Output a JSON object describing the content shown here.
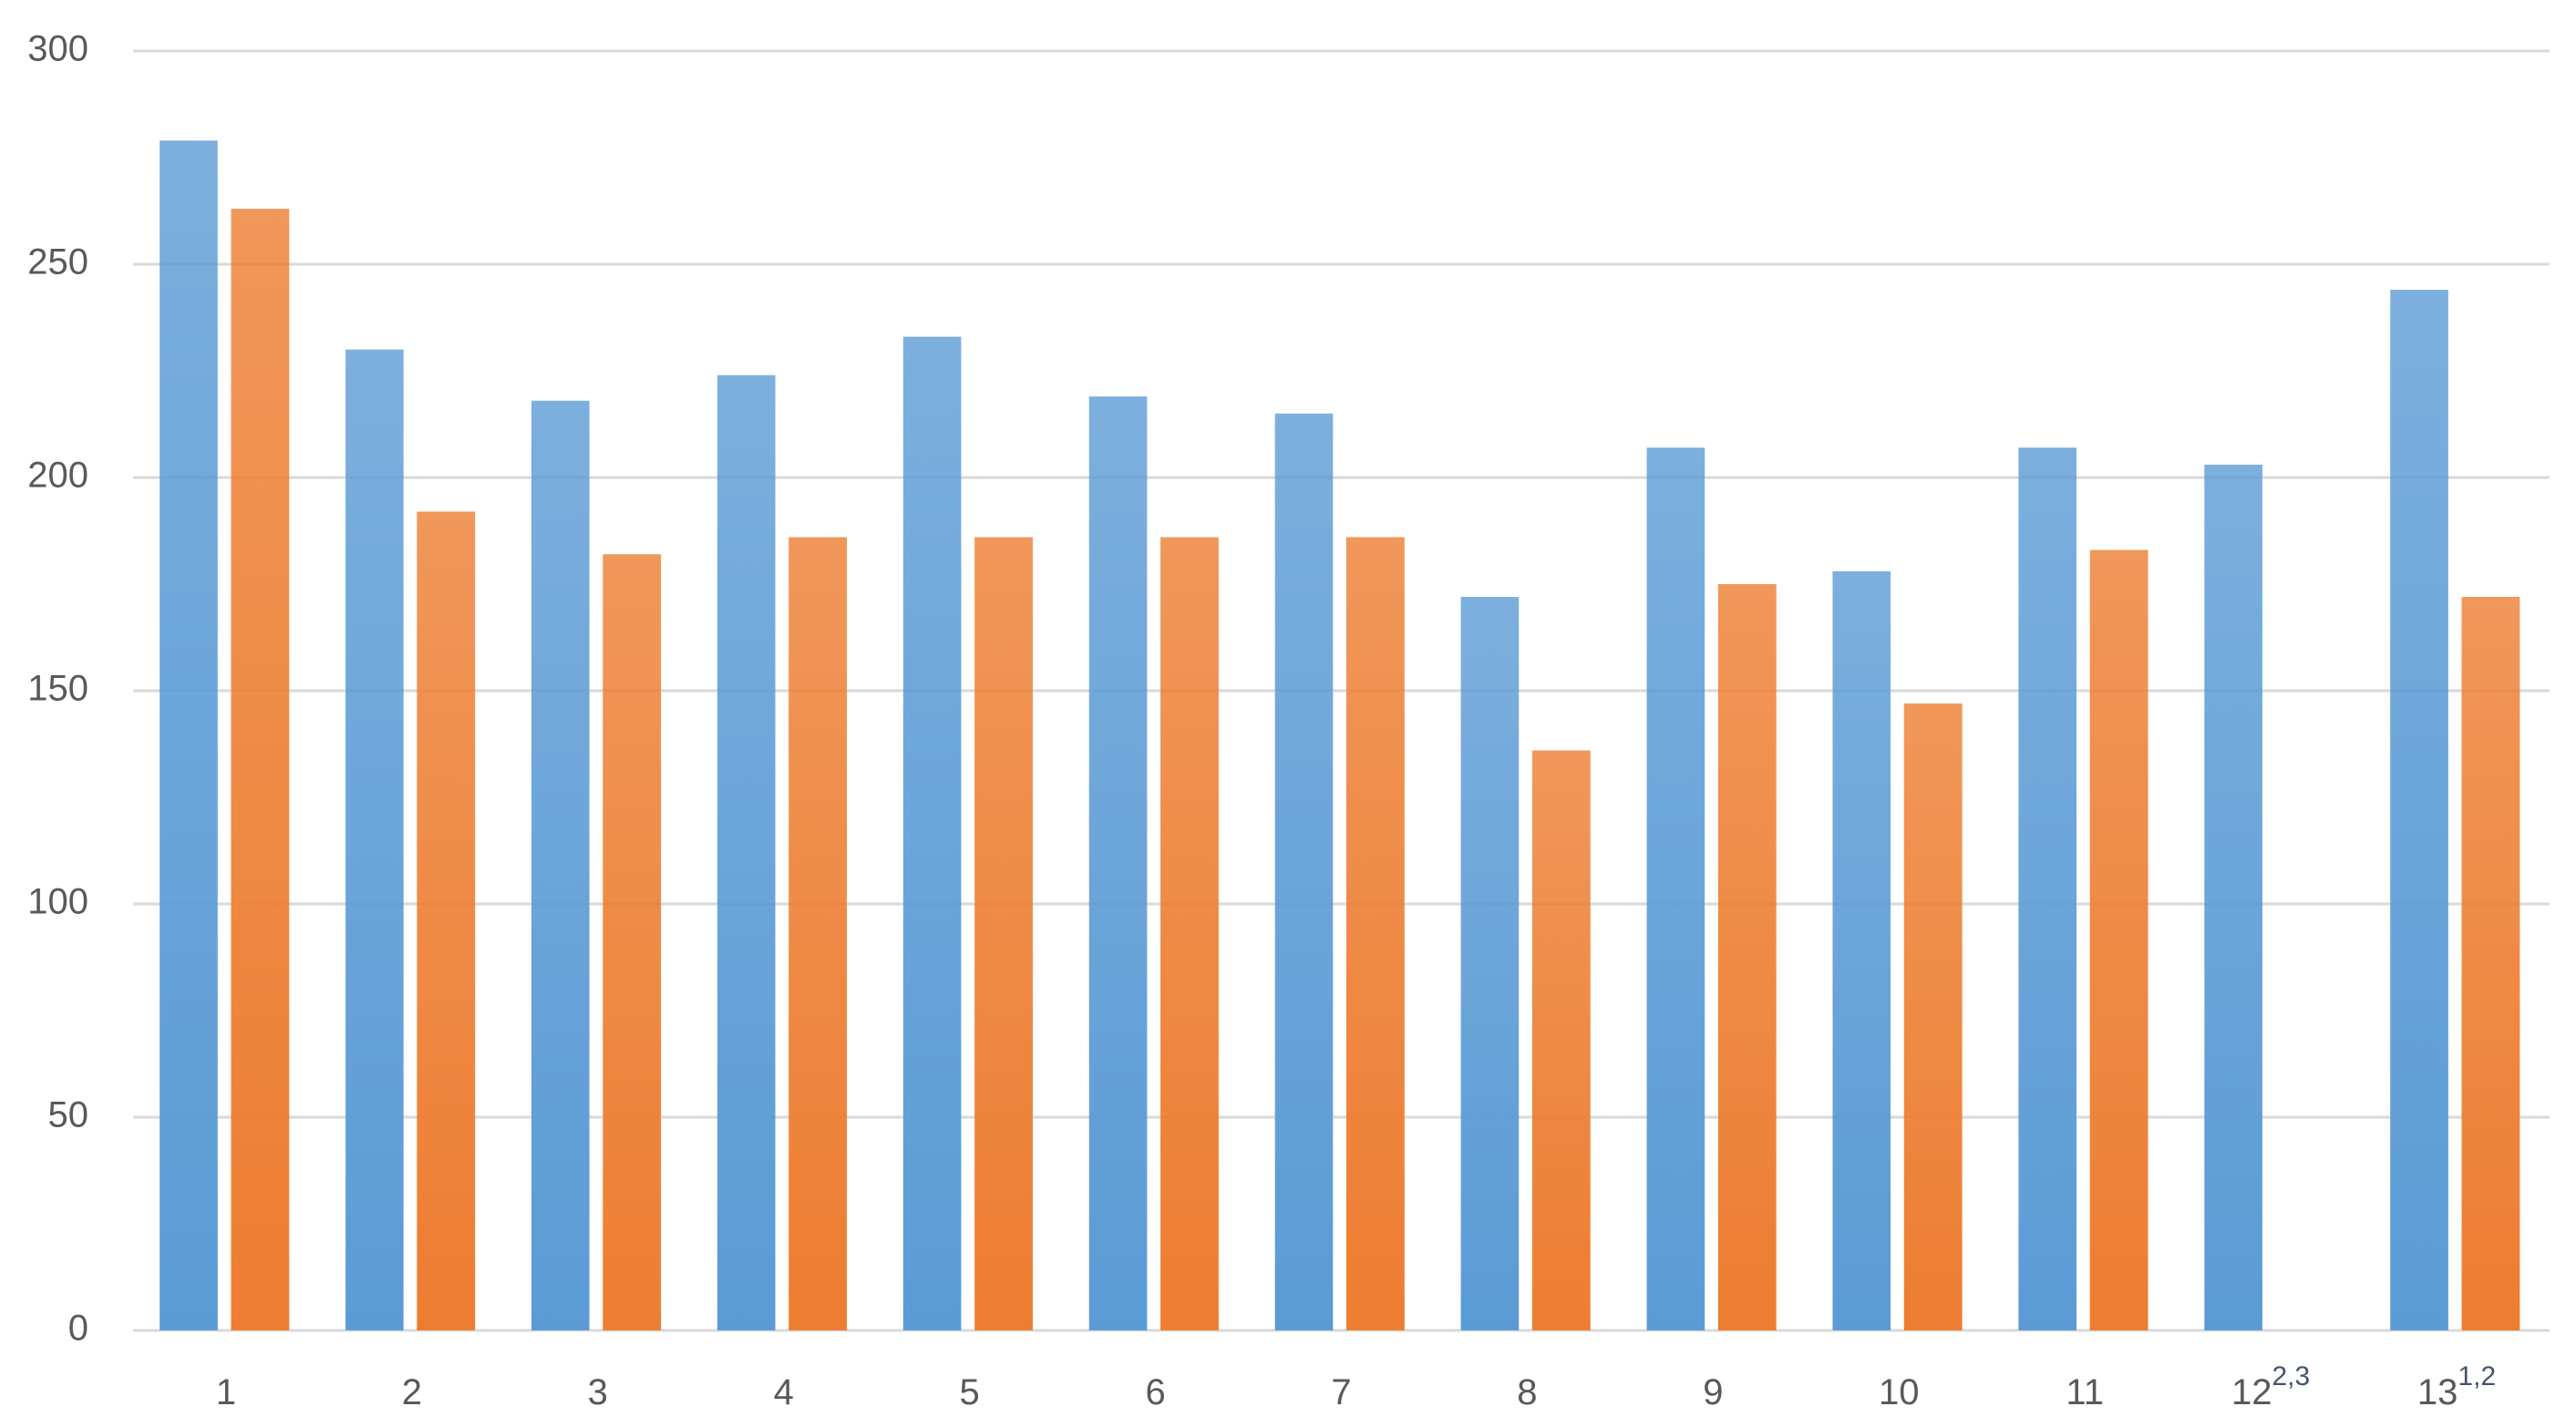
{
  "chart_data": {
    "type": "bar",
    "categories": [
      "1",
      "2",
      "3",
      "4",
      "5",
      "6",
      "7",
      "8",
      "9",
      "10",
      "11",
      "12",
      "13"
    ],
    "category_superscripts": [
      null,
      null,
      null,
      null,
      null,
      null,
      null,
      null,
      null,
      null,
      null,
      "2,3",
      "1,2"
    ],
    "series": [
      {
        "color": "#5b9bd5",
        "values": [
          279,
          230,
          218,
          224,
          233,
          219,
          215,
          172,
          207,
          178,
          207,
          203,
          244
        ]
      },
      {
        "color": "#ed7d31",
        "values": [
          263,
          192,
          182,
          186,
          186,
          186,
          186,
          136,
          175,
          147,
          183,
          null,
          172
        ]
      }
    ],
    "ylim": [
      0,
      300
    ],
    "yticks": [
      0,
      50,
      100,
      150,
      200,
      250,
      300
    ],
    "grid": true
  }
}
